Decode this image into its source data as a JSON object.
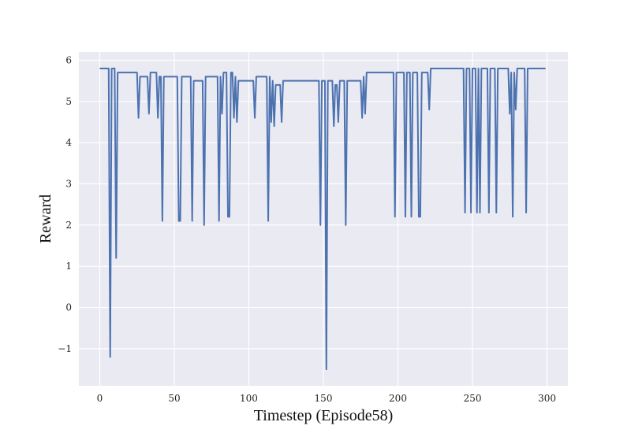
{
  "chart_data": {
    "type": "line",
    "title": "",
    "xlabel": "Timestep (Episode58)",
    "ylabel": "Reward",
    "xlim": [
      -14,
      314
    ],
    "ylim": [
      -1.9,
      6.2
    ],
    "x_ticks": [
      0,
      50,
      100,
      150,
      200,
      250,
      300
    ],
    "y_ticks": [
      -1,
      0,
      1,
      2,
      3,
      4,
      5,
      6
    ],
    "x_tick_labels": [
      "0",
      "50",
      "100",
      "150",
      "200",
      "250",
      "300"
    ],
    "y_tick_labels": [
      "−1",
      "0",
      "1",
      "2",
      "3",
      "4",
      "5",
      "6"
    ],
    "grid": true,
    "background": "#eaeaf2",
    "grid_color": "#ffffff",
    "series": [
      {
        "color": "#4c72b0",
        "points": [
          [
            0,
            5.8
          ],
          [
            6,
            5.8
          ],
          [
            7,
            -1.2
          ],
          [
            8,
            5.8
          ],
          [
            10,
            5.8
          ],
          [
            11,
            1.2
          ],
          [
            12,
            5.7
          ],
          [
            25,
            5.7
          ],
          [
            26,
            4.6
          ],
          [
            27,
            5.6
          ],
          [
            32,
            5.6
          ],
          [
            33,
            4.7
          ],
          [
            34,
            5.7
          ],
          [
            38,
            5.7
          ],
          [
            39,
            4.6
          ],
          [
            40,
            5.6
          ],
          [
            41,
            5.6
          ],
          [
            42,
            2.1
          ],
          [
            43,
            5.6
          ],
          [
            52,
            5.6
          ],
          [
            53,
            2.1
          ],
          [
            54,
            2.1
          ],
          [
            55,
            5.6
          ],
          [
            61,
            5.6
          ],
          [
            62,
            2.1
          ],
          [
            63,
            5.5
          ],
          [
            69,
            5.5
          ],
          [
            70,
            2.0
          ],
          [
            71,
            5.6
          ],
          [
            79,
            5.6
          ],
          [
            80,
            2.1
          ],
          [
            81,
            5.6
          ],
          [
            82,
            4.7
          ],
          [
            83,
            5.7
          ],
          [
            85,
            5.7
          ],
          [
            86,
            2.2
          ],
          [
            87,
            2.2
          ],
          [
            88,
            5.7
          ],
          [
            89,
            5.7
          ],
          [
            90,
            4.6
          ],
          [
            91,
            5.6
          ],
          [
            92,
            4.5
          ],
          [
            93,
            5.5
          ],
          [
            103,
            5.5
          ],
          [
            104,
            4.6
          ],
          [
            105,
            5.6
          ],
          [
            112,
            5.6
          ],
          [
            113,
            2.1
          ],
          [
            114,
            5.6
          ],
          [
            115,
            4.5
          ],
          [
            116,
            5.5
          ],
          [
            117,
            4.4
          ],
          [
            118,
            5.4
          ],
          [
            121,
            5.4
          ],
          [
            122,
            4.5
          ],
          [
            123,
            5.5
          ],
          [
            147,
            5.5
          ],
          [
            148,
            2.0
          ],
          [
            149,
            5.5
          ],
          [
            151,
            5.5
          ],
          [
            152,
            -1.5
          ],
          [
            153,
            5.5
          ],
          [
            156,
            5.5
          ],
          [
            157,
            4.4
          ],
          [
            158,
            5.4
          ],
          [
            159,
            5.4
          ],
          [
            160,
            4.5
          ],
          [
            161,
            5.5
          ],
          [
            164,
            5.5
          ],
          [
            165,
            2.0
          ],
          [
            166,
            5.5
          ],
          [
            175,
            5.5
          ],
          [
            176,
            4.6
          ],
          [
            177,
            5.6
          ],
          [
            178,
            4.7
          ],
          [
            179,
            5.7
          ],
          [
            197,
            5.7
          ],
          [
            198,
            2.2
          ],
          [
            199,
            5.7
          ],
          [
            204,
            5.7
          ],
          [
            205,
            2.2
          ],
          [
            206,
            5.7
          ],
          [
            208,
            5.7
          ],
          [
            209,
            2.2
          ],
          [
            210,
            5.7
          ],
          [
            213,
            5.7
          ],
          [
            214,
            2.2
          ],
          [
            215,
            2.2
          ],
          [
            216,
            5.7
          ],
          [
            220,
            5.7
          ],
          [
            221,
            4.8
          ],
          [
            222,
            5.8
          ],
          [
            244,
            5.8
          ],
          [
            245,
            2.3
          ],
          [
            246,
            5.8
          ],
          [
            248,
            5.8
          ],
          [
            249,
            2.3
          ],
          [
            250,
            5.8
          ],
          [
            252,
            5.8
          ],
          [
            253,
            2.3
          ],
          [
            254,
            5.8
          ],
          [
            255,
            2.3
          ],
          [
            256,
            5.8
          ],
          [
            260,
            5.8
          ],
          [
            261,
            2.3
          ],
          [
            262,
            5.8
          ],
          [
            265,
            5.8
          ],
          [
            266,
            2.3
          ],
          [
            267,
            5.8
          ],
          [
            274,
            5.8
          ],
          [
            275,
            4.7
          ],
          [
            276,
            5.7
          ],
          [
            277,
            2.2
          ],
          [
            278,
            5.7
          ],
          [
            279,
            4.8
          ],
          [
            280,
            5.8
          ],
          [
            285,
            5.8
          ],
          [
            286,
            2.3
          ],
          [
            287,
            5.8
          ],
          [
            299,
            5.8
          ]
        ]
      }
    ]
  }
}
